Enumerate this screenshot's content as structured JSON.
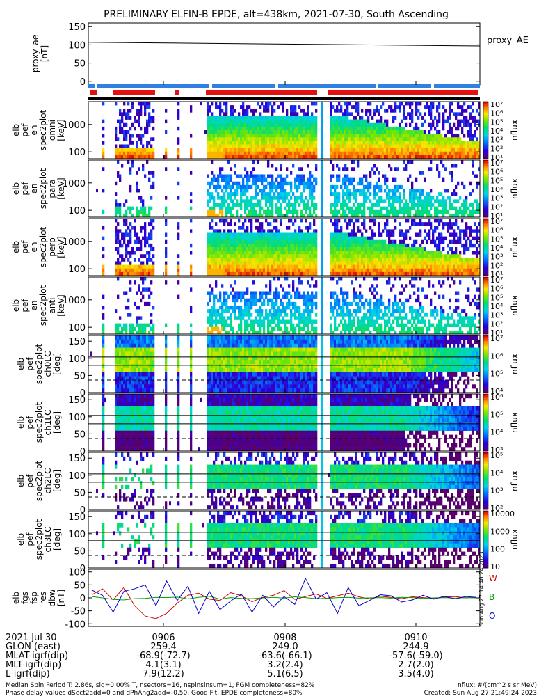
{
  "title": "PRELIMINARY ELFIN-B EPDE, alt=438km, 2021-07-30, South Ascending",
  "legend_colors": {
    "W": "#d40000",
    "B": "#00a000",
    "O": "#0000c8"
  },
  "chart_data": [
    {
      "type": "line",
      "ylabel": "proxy_ae\n[nT]",
      "legend": "proxy_AE",
      "ylim": [
        -10,
        160
      ],
      "y_ticks": [
        "150",
        "100",
        "50",
        "0"
      ],
      "x": [
        0,
        1
      ],
      "values": [
        107,
        97
      ]
    },
    {
      "type": "heatmap",
      "ylabel": "elb\npef\nen\nspec2plot\nomni\n[keV]",
      "y_ticks": [
        "1000",
        "100"
      ],
      "colorbar": {
        "label": "nflux",
        "ticks": [
          "10⁷",
          "10⁶",
          "10⁵",
          "10⁴",
          "10³",
          "10²",
          "10¹"
        ]
      }
    },
    {
      "type": "heatmap",
      "ylabel": "elb\npef\nen\nspec2plot\npara\n[keV]",
      "y_ticks": [
        "1000",
        "100"
      ],
      "colorbar": {
        "label": "nflux",
        "ticks": [
          "10⁷",
          "10⁶",
          "10⁵",
          "10⁴",
          "10³",
          "10²",
          "10¹"
        ]
      }
    },
    {
      "type": "heatmap",
      "ylabel": "elb\npef\nen\nspec2plot\nperp\n[keV]",
      "y_ticks": [
        "1000",
        "100"
      ],
      "colorbar": {
        "label": "nflux",
        "ticks": [
          "10⁷",
          "10⁶",
          "10⁵",
          "10⁴",
          "10³",
          "10²",
          "10¹"
        ]
      }
    },
    {
      "type": "heatmap",
      "ylabel": "elb\npef\nen\nspec2plot\nanti\n[keV]",
      "y_ticks": [
        "1000",
        "100"
      ],
      "colorbar": {
        "label": "nflux",
        "ticks": [
          "10⁷",
          "10⁶",
          "10⁵",
          "10⁴",
          "10³",
          "10²",
          "10¹"
        ]
      }
    },
    {
      "type": "heatmap",
      "ylabel": "elb\npef\nspec2plot\nch0LC\n[deg]",
      "y_ticks": [
        "150",
        "100",
        "50",
        "0"
      ],
      "colorbar": {
        "label": "nflux",
        "ticks": [
          "10⁷",
          "10⁶",
          "10⁵",
          "10⁴"
        ]
      }
    },
    {
      "type": "heatmap",
      "ylabel": "elb\npef\nspec2plot\nch1LC\n[deg]",
      "y_ticks": [
        "150",
        "100",
        "50",
        "0"
      ],
      "colorbar": {
        "label": "nflux",
        "ticks": [
          "10⁶",
          "10⁵",
          "10⁴",
          "10³"
        ]
      }
    },
    {
      "type": "heatmap",
      "ylabel": "elb\npef\nspec2plot\nch2LC\n[deg]",
      "y_ticks": [
        "150",
        "100",
        "50",
        "0"
      ],
      "colorbar": {
        "label": "nflux",
        "ticks": [
          "10⁵",
          "10⁴",
          "10³",
          "10²"
        ]
      }
    },
    {
      "type": "heatmap",
      "ylabel": "elb\npef\nspec2plot\nch3LC\n[deg]",
      "y_ticks": [
        "150",
        "100",
        "50",
        "0"
      ],
      "colorbar": {
        "label": "nflux",
        "ticks": [
          "10000",
          "1000",
          "100",
          "10"
        ]
      }
    },
    {
      "type": "line",
      "ylabel": "elb\nfgs\nfsp\nres\ndbw\n[nT]",
      "ylim": [
        -110,
        110
      ],
      "y_ticks": [
        "100",
        "50",
        "0",
        "-50",
        "-100"
      ],
      "x": [
        0,
        1,
        2,
        3,
        4,
        5,
        6,
        7,
        8,
        9,
        10,
        11,
        12,
        13,
        14,
        15,
        16,
        17,
        18,
        19,
        20,
        21,
        22,
        23,
        24,
        25,
        26,
        27,
        28,
        29,
        30,
        31,
        32,
        33,
        34,
        35,
        36
      ],
      "series": [
        {
          "name": "W",
          "values": [
            12,
            35,
            -8,
            40,
            -30,
            -70,
            -80,
            -60,
            -20,
            10,
            18,
            -5,
            -10,
            20,
            8,
            -15,
            2,
            10,
            28,
            -6,
            5,
            15,
            -2,
            8,
            18,
            4,
            -4,
            6,
            2,
            -3,
            4,
            1,
            -2,
            3,
            5,
            0,
            2
          ]
        },
        {
          "name": "B",
          "values": [
            5,
            0,
            -6,
            -8,
            -3,
            -2,
            2,
            1,
            3,
            -4,
            2,
            6,
            -5,
            1,
            -2,
            -3,
            0,
            2,
            -1,
            4,
            1,
            -3,
            -2,
            1,
            2,
            -1,
            0,
            1,
            -1,
            2,
            1,
            -2,
            0,
            1,
            -1,
            1,
            0
          ]
        },
        {
          "name": "O",
          "values": [
            30,
            10,
            -55,
            25,
            35,
            50,
            -30,
            65,
            -10,
            45,
            -60,
            25,
            -45,
            -12,
            15,
            -55,
            10,
            -35,
            5,
            -25,
            75,
            -5,
            20,
            -60,
            40,
            -30,
            -10,
            12,
            8,
            -16,
            -8,
            10,
            -5,
            6,
            -4,
            5,
            2
          ]
        }
      ],
      "legend": [
        "W",
        "B",
        "O"
      ]
    }
  ],
  "x_axis": {
    "tick_labels": [
      "0906",
      "0908",
      "0910"
    ],
    "rows": [
      {
        "label": "2021 Jul 30",
        "values": [
          "0906",
          "0908",
          "0910"
        ]
      },
      {
        "label": "GLON (east)",
        "values": [
          "259.4",
          "249.0",
          "244.9"
        ]
      },
      {
        "label": "MLAT-igrf(dip)",
        "values": [
          "-68.9(-72.7)",
          "-63.6(-66.1)",
          "-57.6(-59.0)"
        ]
      },
      {
        "label": "MLT-igrf(dip)",
        "values": [
          "4.1(3.1)",
          "3.2(2.4)",
          "2.7(2.0)"
        ]
      },
      {
        "label": "L-igrf(dip)",
        "values": [
          "7.9(12.2)",
          "5.1(6.5)",
          "3.5(4.0)"
        ]
      }
    ]
  },
  "footer": {
    "left_line1": "Median Spin Period T: 2.86s, sig=0.00% T, nsectors=16, nspinsinsum=1, FGM completeness=82%",
    "left_line2": "Phase delay values dSect2add=0 and dPhAng2add=-0.50, Good Fit, EPDE completeness=80%",
    "right_line1": "nflux: #/(cm^2 s sr MeV)",
    "right_line2": "Created: Sun Aug 27 21:49:24 2023",
    "side_stamp": "Sun Aug 27 14:48:24 2023"
  }
}
